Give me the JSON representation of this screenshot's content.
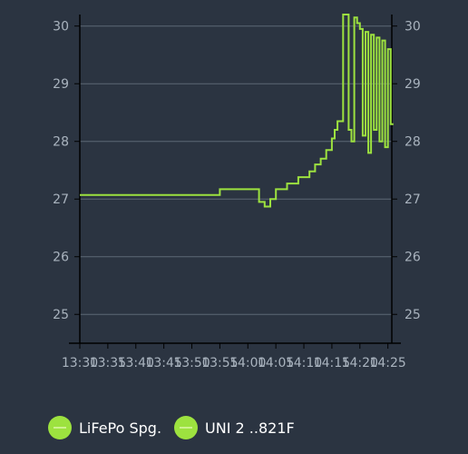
{
  "chart_data": {
    "type": "line",
    "title": "",
    "xlabel": "",
    "ylabel": "",
    "ylim": [
      24.5,
      30.2
    ],
    "y_ticks": [
      "25",
      "26",
      "27",
      "28",
      "29",
      "30"
    ],
    "x_ticks": [
      "13:30",
      "13:35",
      "13:40",
      "13:45",
      "13:50",
      "13:55",
      "14:00",
      "14:05",
      "14:10",
      "14:15",
      "14:20",
      "14:25"
    ],
    "grid": true,
    "legend_position": "bottom-left",
    "line_color": "#9de23f",
    "series": [
      {
        "name": "LiFePo Spg.",
        "x": [
          "13:30",
          "13:50",
          "13:55",
          "14:01",
          "14:02",
          "14:03",
          "14:04",
          "14:05",
          "14:06",
          "14:07",
          "14:08",
          "14:09",
          "14:10",
          "14:11",
          "14:12",
          "14:13",
          "14:14",
          "14:15",
          "14:15.5",
          "14:16",
          "14:17",
          "14:18",
          "14:18.5",
          "14:19",
          "14:19.5",
          "14:20",
          "14:20.5",
          "14:21",
          "14:21.5",
          "14:22",
          "14:22.5",
          "14:23",
          "14:23.5",
          "14:24",
          "14:24.5",
          "14:25",
          "14:25.5"
        ],
        "y": [
          27.07,
          27.07,
          27.17,
          27.17,
          26.95,
          26.87,
          27.0,
          27.17,
          27.17,
          27.27,
          27.27,
          27.38,
          27.38,
          27.48,
          27.6,
          27.7,
          27.85,
          28.05,
          28.2,
          28.35,
          30.2,
          28.2,
          28.0,
          30.15,
          30.05,
          29.95,
          28.1,
          29.9,
          27.8,
          29.85,
          28.2,
          29.8,
          28.0,
          29.75,
          27.9,
          29.6,
          28.3
        ]
      },
      {
        "name": "UNI 2 ..821F",
        "x": [],
        "y": []
      }
    ]
  },
  "legend": {
    "items": [
      {
        "label": "LiFePo Spg.",
        "color": "#9de23f"
      },
      {
        "label": "UNI 2 ..821F",
        "color": "#9de23f"
      }
    ]
  }
}
